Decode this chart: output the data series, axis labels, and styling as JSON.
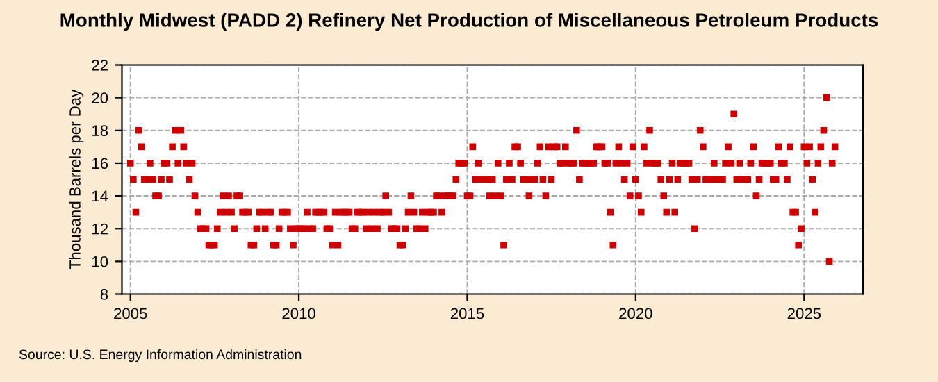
{
  "chart_data": {
    "type": "scatter",
    "title": "Monthly Midwest (PADD 2) Refinery Net Production of Miscellaneous Petroleum Products",
    "ylabel": "Thousand Barrels per Day",
    "annotations": [
      "Source: U.S. Energy Information Administration"
    ],
    "x": [
      "2005-01",
      "2005-02",
      "2005-03",
      "2005-04",
      "2005-05",
      "2005-06",
      "2005-07",
      "2005-08",
      "2005-09",
      "2005-10",
      "2005-11",
      "2005-12",
      "2006-01",
      "2006-02",
      "2006-03",
      "2006-04",
      "2006-05",
      "2006-06",
      "2006-07",
      "2006-08",
      "2006-09",
      "2006-10",
      "2006-11",
      "2006-12",
      "2007-01",
      "2007-02",
      "2007-03",
      "2007-04",
      "2007-05",
      "2007-06",
      "2007-07",
      "2007-08",
      "2007-09",
      "2007-10",
      "2007-11",
      "2007-12",
      "2008-01",
      "2008-02",
      "2008-03",
      "2008-04",
      "2008-05",
      "2008-06",
      "2008-07",
      "2008-08",
      "2008-09",
      "2008-10",
      "2008-11",
      "2008-12",
      "2009-01",
      "2009-02",
      "2009-03",
      "2009-04",
      "2009-05",
      "2009-06",
      "2009-07",
      "2009-08",
      "2009-09",
      "2009-10",
      "2009-11",
      "2009-12",
      "2010-01",
      "2010-02",
      "2010-03",
      "2010-04",
      "2010-05",
      "2010-06",
      "2010-07",
      "2010-08",
      "2010-09",
      "2010-10",
      "2010-11",
      "2010-12",
      "2011-01",
      "2011-02",
      "2011-03",
      "2011-04",
      "2011-05",
      "2011-06",
      "2011-07",
      "2011-08",
      "2011-09",
      "2011-10",
      "2011-11",
      "2011-12",
      "2012-01",
      "2012-02",
      "2012-03",
      "2012-04",
      "2012-05",
      "2012-06",
      "2012-07",
      "2012-08",
      "2012-09",
      "2012-10",
      "2012-11",
      "2012-12",
      "2013-01",
      "2013-02",
      "2013-03",
      "2013-04",
      "2013-05",
      "2013-06",
      "2013-07",
      "2013-08",
      "2013-09",
      "2013-10",
      "2013-11",
      "2013-12",
      "2014-01",
      "2014-02",
      "2014-03",
      "2014-04",
      "2014-05",
      "2014-06",
      "2014-07",
      "2014-08",
      "2014-09",
      "2014-10",
      "2014-11",
      "2014-12",
      "2015-01",
      "2015-02",
      "2015-03",
      "2015-04",
      "2015-05",
      "2015-06",
      "2015-07",
      "2015-08",
      "2015-09",
      "2015-10",
      "2015-11",
      "2015-12",
      "2016-01",
      "2016-02",
      "2016-03",
      "2016-04",
      "2016-05",
      "2016-06",
      "2016-07",
      "2016-08",
      "2016-09",
      "2016-10",
      "2016-11",
      "2016-12",
      "2017-01",
      "2017-02",
      "2017-03",
      "2017-04",
      "2017-05",
      "2017-06",
      "2017-07",
      "2017-08",
      "2017-09",
      "2017-10",
      "2017-11",
      "2017-12",
      "2018-01",
      "2018-02",
      "2018-03",
      "2018-04",
      "2018-05",
      "2018-06",
      "2018-07",
      "2018-08",
      "2018-09",
      "2018-10",
      "2018-11",
      "2018-12",
      "2019-01",
      "2019-02",
      "2019-03",
      "2019-04",
      "2019-05",
      "2019-06",
      "2019-07",
      "2019-08",
      "2019-09",
      "2019-10",
      "2019-11",
      "2019-12",
      "2020-01",
      "2020-02",
      "2020-03",
      "2020-04",
      "2020-05",
      "2020-06",
      "2020-07",
      "2020-08",
      "2020-09",
      "2020-10",
      "2020-11",
      "2020-12",
      "2021-01",
      "2021-02",
      "2021-03",
      "2021-04",
      "2021-05",
      "2021-06",
      "2021-07",
      "2021-08",
      "2021-09",
      "2021-10",
      "2021-11",
      "2021-12",
      "2022-01",
      "2022-02",
      "2022-03",
      "2022-04",
      "2022-05",
      "2022-06",
      "2022-07",
      "2022-08",
      "2022-09",
      "2022-10",
      "2022-11",
      "2022-12",
      "2023-01",
      "2023-02",
      "2023-03",
      "2023-04",
      "2023-05",
      "2023-06",
      "2023-07",
      "2023-08",
      "2023-09",
      "2023-10",
      "2023-11",
      "2023-12",
      "2024-01",
      "2024-02",
      "2024-03",
      "2024-04",
      "2024-05",
      "2024-06",
      "2024-07",
      "2024-08",
      "2024-09",
      "2024-10",
      "2024-11",
      "2024-12",
      "2025-01",
      "2025-02",
      "2025-03",
      "2025-04",
      "2025-05",
      "2025-06",
      "2025-07",
      "2025-08",
      "2025-09",
      "2025-10",
      "2025-11",
      "2025-12"
    ],
    "series": [
      {
        "color": "#cc0000",
        "values": [
          16,
          15,
          13,
          18,
          17,
          15,
          15,
          16,
          15,
          14,
          14,
          15,
          16,
          16,
          15,
          17,
          18,
          16,
          18,
          17,
          16,
          15,
          16,
          14,
          13,
          12,
          12,
          12,
          11,
          11,
          11,
          12,
          13,
          14,
          13,
          14,
          13,
          12,
          14,
          14,
          13,
          13,
          13,
          11,
          11,
          12,
          13,
          13,
          12,
          13,
          13,
          11,
          11,
          12,
          13,
          13,
          13,
          12,
          11,
          12,
          12,
          12,
          12,
          13,
          12,
          12,
          13,
          13,
          13,
          13,
          12,
          12,
          11,
          13,
          11,
          13,
          13,
          13,
          13,
          12,
          12,
          13,
          13,
          13,
          12,
          13,
          12,
          13,
          12,
          13,
          13,
          14,
          13,
          12,
          12,
          12,
          11,
          11,
          12,
          13,
          14,
          13,
          12,
          12,
          13,
          12,
          13,
          13,
          13,
          14,
          14,
          13,
          14,
          14,
          14,
          14,
          15,
          16,
          16,
          16,
          14,
          14,
          17,
          15,
          16,
          15,
          15,
          15,
          14,
          15,
          14,
          16,
          14,
          11,
          15,
          16,
          15,
          17,
          17,
          16,
          15,
          15,
          14,
          15,
          15,
          16,
          17,
          15,
          14,
          17,
          15,
          17,
          17,
          16,
          16,
          17,
          16,
          16,
          16,
          18,
          15,
          16,
          16,
          16,
          16,
          16,
          17,
          17,
          17,
          16,
          16,
          13,
          11,
          16,
          17,
          16,
          15,
          16,
          14,
          17,
          15,
          14,
          13,
          17,
          16,
          18,
          16,
          16,
          16,
          15,
          14,
          13,
          15,
          16,
          13,
          15,
          16,
          16,
          16,
          16,
          15,
          12,
          15,
          18,
          17,
          15,
          15,
          15,
          16,
          15,
          15,
          15,
          16,
          17,
          16,
          19,
          15,
          16,
          15,
          15,
          15,
          16,
          17,
          14,
          15,
          16,
          16,
          16,
          16,
          15,
          15,
          17,
          16,
          16,
          15,
          17,
          13,
          13,
          11,
          12,
          17,
          16,
          17,
          15,
          13,
          16,
          17,
          18,
          20,
          10,
          16,
          17
        ]
      }
    ],
    "xlim": [
      "2004-10",
      "2026-10"
    ],
    "xticks": [
      {
        "value": "2005-01",
        "label": "2005"
      },
      {
        "value": "2010-01",
        "label": "2010"
      },
      {
        "value": "2015-01",
        "label": "2015"
      },
      {
        "value": "2020-01",
        "label": "2020"
      },
      {
        "value": "2025-01",
        "label": "2025"
      }
    ],
    "ylim": [
      8,
      22
    ],
    "yticks": [
      8,
      10,
      12,
      14,
      16,
      18,
      20,
      22
    ],
    "grid": true,
    "marker": "square",
    "legend": false
  }
}
